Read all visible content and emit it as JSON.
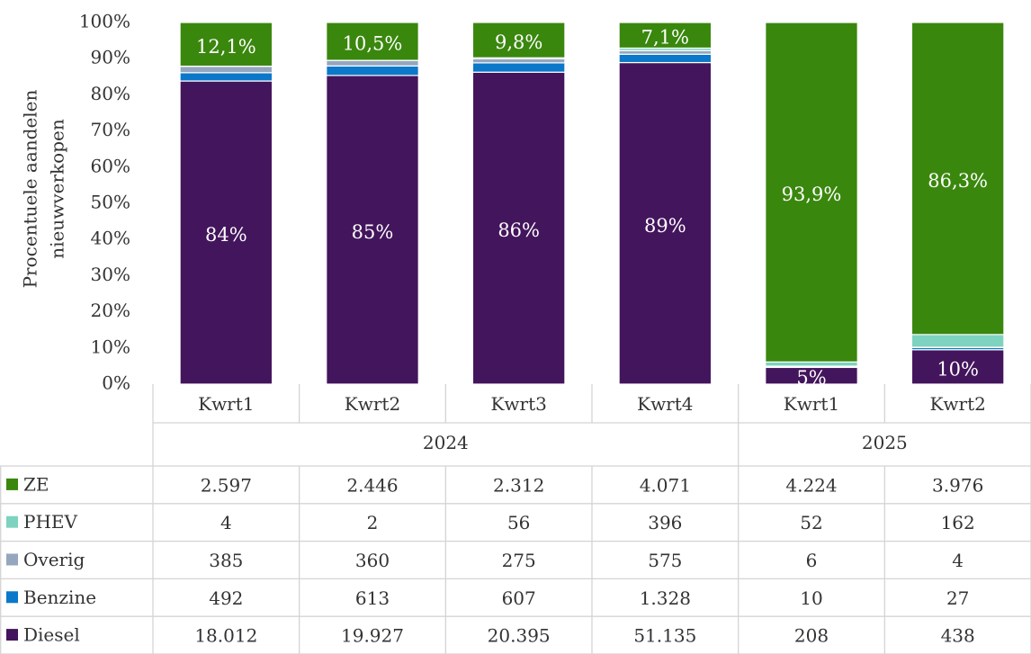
{
  "chart_data": {
    "type": "bar",
    "stacked": true,
    "ylabel": [
      "Procentuele aandelen",
      "nieuwverkopen"
    ],
    "groups": [
      {
        "label": "2024",
        "categories": [
          "Kwrt1",
          "Kwrt2",
          "Kwrt3",
          "Kwrt4"
        ]
      },
      {
        "label": "2025",
        "categories": [
          "Kwrt1",
          "Kwrt2"
        ]
      }
    ],
    "ylim": [
      0,
      100
    ],
    "yticks": [
      {
        "value": 0,
        "label": "0%"
      },
      {
        "value": 10,
        "label": "10%"
      },
      {
        "value": 20,
        "label": "20%"
      },
      {
        "value": 30,
        "label": "30%"
      },
      {
        "value": 40,
        "label": "40%"
      },
      {
        "value": 50,
        "label": "50%"
      },
      {
        "value": 60,
        "label": "60%"
      },
      {
        "value": 70,
        "label": "70%"
      },
      {
        "value": 80,
        "label": "80%"
      },
      {
        "value": 90,
        "label": "90%"
      },
      {
        "value": 100,
        "label": "100%"
      }
    ],
    "series": [
      {
        "name": "ZE",
        "color": "#3a870e",
        "values": [
          12.08,
          10.48,
          9.78,
          7.08,
          93.87,
          86.3
        ],
        "value_labels": [
          "12,1%",
          "10,5%",
          "9,8%",
          "7,1%",
          "93,9%",
          "86,3%"
        ],
        "table": [
          "2.597",
          "2.446",
          "2.312",
          "4.071",
          "4.224",
          "3.976"
        ]
      },
      {
        "name": "PHEV",
        "color": "#7dd3bf",
        "values": [
          0.02,
          0.01,
          0.24,
          0.69,
          1.16,
          3.52
        ],
        "table": [
          "4",
          "2",
          "56",
          "396",
          "52",
          "162"
        ]
      },
      {
        "name": "Overig",
        "color": "#95a7bf",
        "values": [
          1.79,
          1.54,
          1.16,
          1.0,
          0.13,
          0.09
        ],
        "table": [
          "385",
          "360",
          "275",
          "575",
          "6",
          "4"
        ]
      },
      {
        "name": "Benzine",
        "color": "#0b78c9",
        "values": [
          2.29,
          2.63,
          2.57,
          2.31,
          0.22,
          0.59
        ],
        "table": [
          "492",
          "613",
          "607",
          "1.328",
          "10",
          "27"
        ]
      },
      {
        "name": "Diesel",
        "color": "#43155c",
        "values": [
          83.82,
          85.35,
          86.26,
          88.92,
          4.62,
          9.51
        ],
        "value_labels": [
          "84%",
          "85%",
          "86%",
          "89%",
          "5%",
          "10%"
        ],
        "table": [
          "18.012",
          "19.927",
          "20.395",
          "51.135",
          "208",
          "438"
        ]
      }
    ]
  }
}
